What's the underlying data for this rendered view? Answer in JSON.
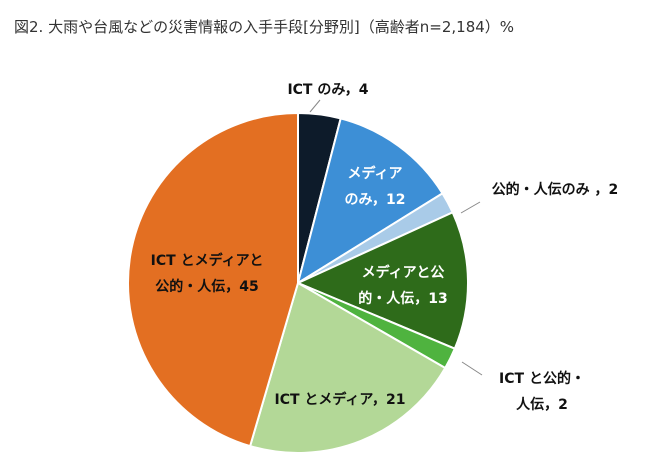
{
  "chart_data": {
    "type": "pie",
    "title": "図2. 大雨や台風などの災害情報の入手手段[分野別]（高齢者n=2,184）%",
    "slices": [
      {
        "label_lines": [
          "ICT のみ，4"
        ],
        "value": 4,
        "color": "#0d1b2a",
        "text_color": "#111111"
      },
      {
        "label_lines": [
          "メディア",
          "のみ，12"
        ],
        "value": 12,
        "color": "#3d8fd6",
        "text_color": "#ffffff"
      },
      {
        "label_lines": [
          "公的・人伝のみ ，2"
        ],
        "value": 2,
        "color": "#a9cbe8",
        "text_color": "#111111"
      },
      {
        "label_lines": [
          "メディアと公",
          "的・人伝，13"
        ],
        "value": 13,
        "color": "#2e6b1a",
        "text_color": "#ffffff"
      },
      {
        "label_lines": [
          "ICT と公的・",
          "人伝，2"
        ],
        "value": 2,
        "color": "#4fb33f",
        "text_color": "#111111"
      },
      {
        "label_lines": [
          "ICT とメディア，21"
        ],
        "value": 21,
        "color": "#b3d897",
        "text_color": "#111111"
      },
      {
        "label_lines": [
          "ICT とメディアと",
          "公的・人伝，45"
        ],
        "value": 45,
        "color": "#e36f22",
        "text_color": "#111111"
      }
    ]
  }
}
